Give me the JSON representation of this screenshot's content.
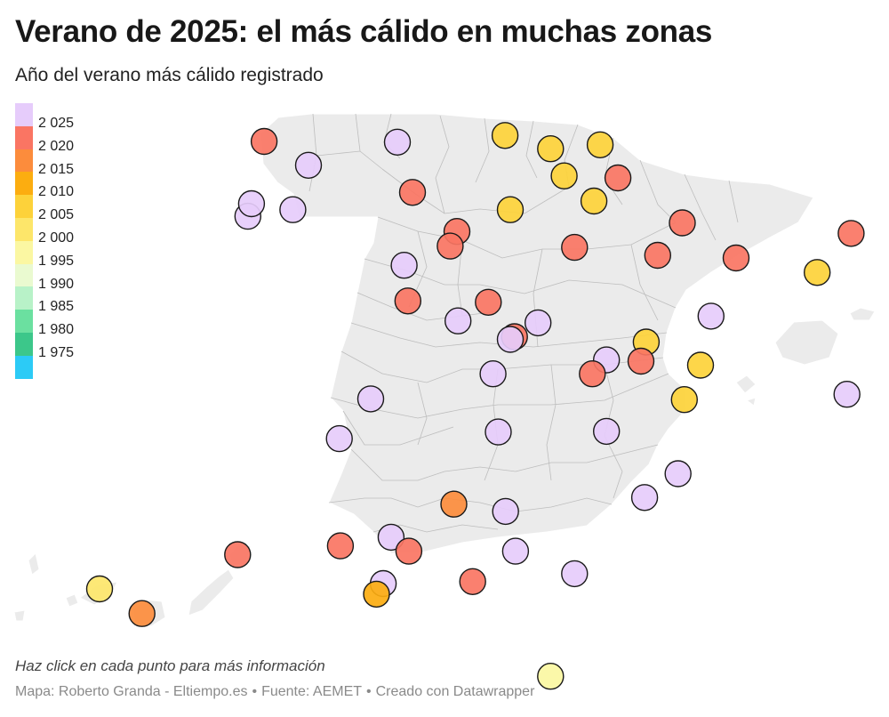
{
  "header": {
    "title": "Verano de 2025: el más cálido en muchas zonas",
    "subtitle": "Año del verano más cálido registrado"
  },
  "legend": [
    {
      "label": "2 025",
      "year": 2025,
      "color": "#e6ccfb"
    },
    {
      "label": "2 020",
      "year": 2020,
      "color": "#fa7563"
    },
    {
      "label": "2 015",
      "year": 2015,
      "color": "#fc8c3c"
    },
    {
      "label": "2 010",
      "year": 2010,
      "color": "#fcad10"
    },
    {
      "label": "2 005",
      "year": 2005,
      "color": "#fdd23a"
    },
    {
      "label": "2 000",
      "year": 2000,
      "color": "#fde66a"
    },
    {
      "label": "1 995",
      "year": 1995,
      "color": "#fbf7a2"
    },
    {
      "label": "1 990",
      "year": 1990,
      "color": "#eafad0"
    },
    {
      "label": "1 985",
      "year": 1985,
      "color": "#b8f2c8"
    },
    {
      "label": "1 980",
      "year": 1980,
      "color": "#6be0a0"
    },
    {
      "label": "1 975",
      "year": 1975,
      "color": "#3cc78a"
    },
    {
      "label": "",
      "year": 1970,
      "color": "#2ccbf6"
    }
  ],
  "stations": [
    {
      "lon": -8.41,
      "lat": 43.37,
      "year": 2020
    },
    {
      "lon": -7.56,
      "lat": 43.01,
      "year": 2025
    },
    {
      "lon": -5.86,
      "lat": 43.36,
      "year": 2025
    },
    {
      "lon": -8.72,
      "lat": 42.24,
      "year": 2025
    },
    {
      "lon": -8.65,
      "lat": 42.43,
      "year": 2025
    },
    {
      "lon": -7.86,
      "lat": 42.34,
      "year": 2025
    },
    {
      "lon": -3.8,
      "lat": 43.46,
      "year": 2005
    },
    {
      "lon": -2.93,
      "lat": 43.26,
      "year": 2005
    },
    {
      "lon": -2.67,
      "lat": 42.85,
      "year": 2005
    },
    {
      "lon": -1.98,
      "lat": 43.32,
      "year": 2005
    },
    {
      "lon": -1.64,
      "lat": 42.82,
      "year": 2020
    },
    {
      "lon": -5.57,
      "lat": 42.6,
      "year": 2020
    },
    {
      "lon": -3.7,
      "lat": 42.34,
      "year": 2005
    },
    {
      "lon": -2.1,
      "lat": 42.47,
      "year": 2005
    },
    {
      "lon": -4.72,
      "lat": 42.01,
      "year": 2020
    },
    {
      "lon": -4.85,
      "lat": 41.79,
      "year": 2020
    },
    {
      "lon": -2.47,
      "lat": 41.77,
      "year": 2020
    },
    {
      "lon": -0.88,
      "lat": 41.65,
      "year": 2020
    },
    {
      "lon": -0.41,
      "lat": 42.14,
      "year": 2020
    },
    {
      "lon": 0.62,
      "lat": 41.61,
      "year": 2020
    },
    {
      "lon": 2.82,
      "lat": 41.98,
      "year": 2020
    },
    {
      "lon": 2.17,
      "lat": 41.39,
      "year": 2005
    },
    {
      "lon": -5.73,
      "lat": 41.5,
      "year": 2025
    },
    {
      "lon": -5.66,
      "lat": 40.96,
      "year": 2020
    },
    {
      "lon": -4.12,
      "lat": 40.94,
      "year": 2020
    },
    {
      "lon": -3.17,
      "lat": 40.63,
      "year": 2025
    },
    {
      "lon": -4.7,
      "lat": 40.66,
      "year": 2025
    },
    {
      "lon": -3.62,
      "lat": 40.42,
      "year": 2020
    },
    {
      "lon": -3.7,
      "lat": 40.38,
      "year": 2025
    },
    {
      "lon": -1.1,
      "lat": 40.34,
      "year": 2005
    },
    {
      "lon": -1.86,
      "lat": 40.07,
      "year": 2025
    },
    {
      "lon": 0.14,
      "lat": 40.73,
      "year": 2025
    },
    {
      "lon": -1.2,
      "lat": 40.05,
      "year": 2020
    },
    {
      "lon": -2.13,
      "lat": 39.86,
      "year": 2020
    },
    {
      "lon": -4.03,
      "lat": 39.86,
      "year": 2025
    },
    {
      "lon": -0.06,
      "lat": 39.99,
      "year": 2005
    },
    {
      "lon": -0.37,
      "lat": 39.47,
      "year": 2005
    },
    {
      "lon": 2.74,
      "lat": 39.55,
      "year": 2025
    },
    {
      "lon": -6.37,
      "lat": 39.48,
      "year": 2025
    },
    {
      "lon": -6.97,
      "lat": 38.88,
      "year": 2025
    },
    {
      "lon": -3.93,
      "lat": 38.98,
      "year": 2025
    },
    {
      "lon": -1.86,
      "lat": 38.99,
      "year": 2025
    },
    {
      "lon": -0.49,
      "lat": 38.35,
      "year": 2025
    },
    {
      "lon": -1.13,
      "lat": 37.99,
      "year": 2025
    },
    {
      "lon": -4.78,
      "lat": 37.89,
      "year": 2015
    },
    {
      "lon": -3.79,
      "lat": 37.78,
      "year": 2025
    },
    {
      "lon": -6.95,
      "lat": 37.26,
      "year": 2020
    },
    {
      "lon": -5.98,
      "lat": 37.39,
      "year": 2025
    },
    {
      "lon": -5.64,
      "lat": 37.18,
      "year": 2020
    },
    {
      "lon": -3.6,
      "lat": 37.18,
      "year": 2025
    },
    {
      "lon": -2.47,
      "lat": 36.84,
      "year": 2025
    },
    {
      "lon": -4.42,
      "lat": 36.72,
      "year": 2020
    },
    {
      "lon": -6.13,
      "lat": 36.69,
      "year": 2025
    },
    {
      "lon": -6.26,
      "lat": 36.53,
      "year": 2010
    },
    {
      "lon": -2.93,
      "lat": 35.29,
      "year": 1995
    },
    {
      "lon": -13.55,
      "lat": 28.96,
      "year": 2020
    },
    {
      "lon": -16.25,
      "lat": 28.46,
      "year": 2000
    },
    {
      "lon": -15.42,
      "lat": 28.1,
      "year": 2015
    }
  ],
  "notes": "Haz click en cada punto para más información",
  "byline": {
    "author": "Mapa: Roberto Granda - Eltiempo.es",
    "separator": "•",
    "source": "Fuente: AEMET",
    "credit": "Creado con Datawrapper"
  }
}
